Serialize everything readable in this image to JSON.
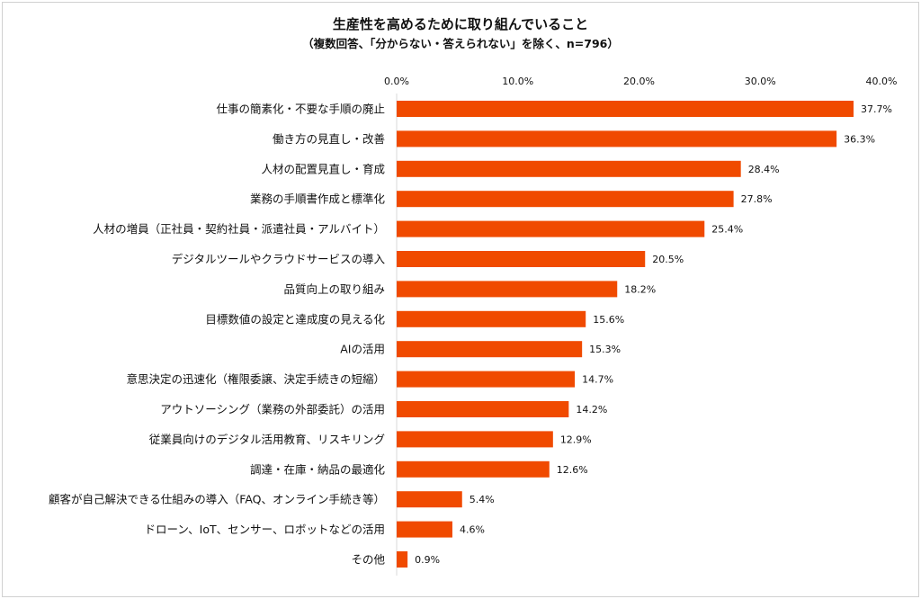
{
  "chart_data": {
    "type": "bar",
    "orientation": "horizontal",
    "title": "生産性を高めるために取り組んでいること",
    "subtitle": "（複数回答、「分からない・答えられない」を除く、n=796）",
    "categories": [
      "仕事の簡素化・不要な手順の廃止",
      "働き方の見直し・改善",
      "人材の配置見直し・育成",
      "業務の手順書作成と標準化",
      "人材の増員（正社員・契約社員・派遣社員・アルバイト）",
      "デジタルツールやクラウドサービスの導入",
      "品質向上の取り組み",
      "目標数値の設定と達成度の見える化",
      "AIの活用",
      "意思決定の迅速化（権限委譲、決定手続きの短縮）",
      "アウトソーシング（業務の外部委託）の活用",
      "従業員向けのデジタル活用教育、リスキリング",
      "調達・在庫・納品の最適化",
      "顧客が自己解決できる仕組みの導入（FAQ、オンライン手続き等）",
      "ドローン、IoT、センサー、ロボットなどの活用",
      "その他"
    ],
    "values": [
      37.7,
      36.3,
      28.4,
      27.8,
      25.4,
      20.5,
      18.2,
      15.6,
      15.3,
      14.7,
      14.2,
      12.9,
      12.6,
      5.4,
      4.6,
      0.9
    ],
    "data_labels": [
      "37.7%",
      "36.3%",
      "28.4%",
      "27.8%",
      "25.4%",
      "20.5%",
      "18.2%",
      "15.6%",
      "15.3%",
      "14.7%",
      "14.2%",
      "12.9%",
      "12.6%",
      "5.4%",
      "4.6%",
      "0.9%"
    ],
    "xlim": [
      0,
      40
    ],
    "x_ticks": [
      "0.0%",
      "10.0%",
      "20.0%",
      "30.0%",
      "40.0%"
    ],
    "x_tick_values": [
      0,
      10,
      20,
      30,
      40
    ],
    "x_axis_position": "top",
    "grid": false,
    "bar_color": "#f04a00"
  }
}
